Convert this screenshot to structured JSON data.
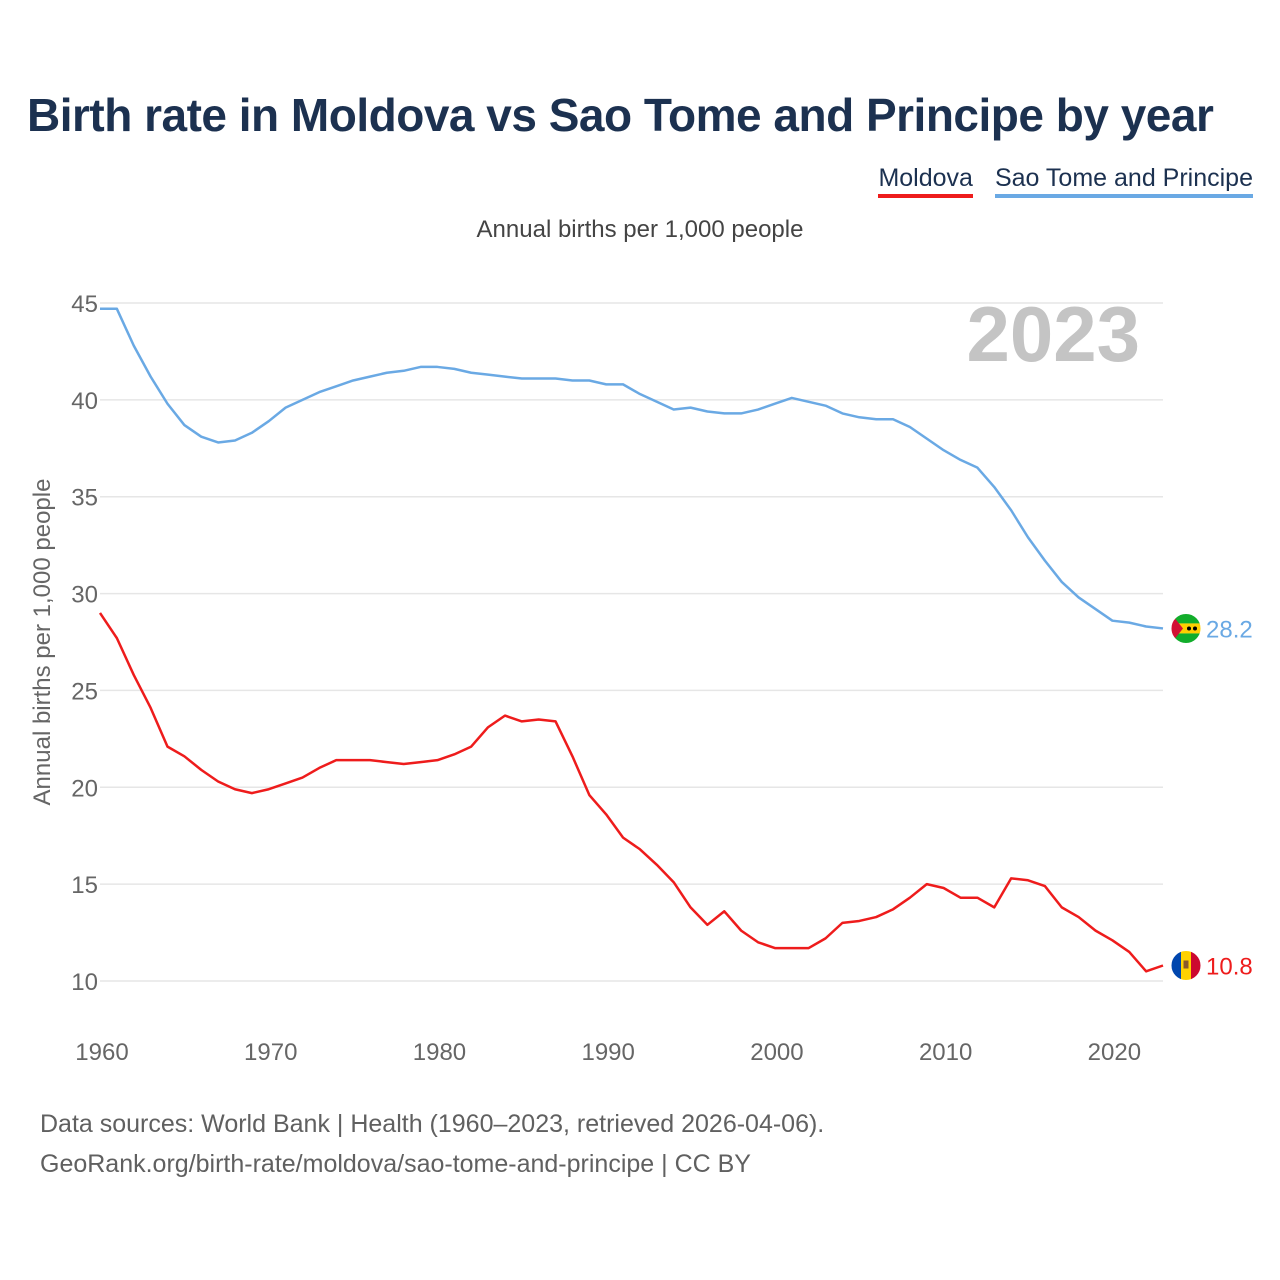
{
  "title": "Birth rate in Moldova vs Sao Tome and Principe by year",
  "subtitle": "Annual births per 1,000 people",
  "legend": {
    "moldova": "Moldova",
    "stp": "Sao Tome and Principe"
  },
  "footer": {
    "line1": "Data sources: World Bank | Health (1960–2023, retrieved 2026-04-06).",
    "line2": "GeoRank.org/birth-rate/moldova/sao-tome-and-principe | CC BY"
  },
  "chart_data": {
    "type": "line",
    "title": "Birth rate in Moldova vs Sao Tome and Principe by year",
    "ylabel": "Annual births per 1,000 people",
    "xlabel": "",
    "year_label": "2023",
    "xlim": [
      1960,
      2023
    ],
    "ylim": [
      10,
      45
    ],
    "x_ticks": [
      1960,
      1970,
      1980,
      1990,
      2000,
      2010,
      2020
    ],
    "y_ticks": [
      10,
      15,
      20,
      25,
      30,
      35,
      40,
      45
    ],
    "x": [
      1960,
      1961,
      1962,
      1963,
      1964,
      1965,
      1966,
      1967,
      1968,
      1969,
      1970,
      1971,
      1972,
      1973,
      1974,
      1975,
      1976,
      1977,
      1978,
      1979,
      1980,
      1981,
      1982,
      1983,
      1984,
      1985,
      1986,
      1987,
      1988,
      1989,
      1990,
      1991,
      1992,
      1993,
      1994,
      1995,
      1996,
      1997,
      1998,
      1999,
      2000,
      2001,
      2002,
      2003,
      2004,
      2005,
      2006,
      2007,
      2008,
      2009,
      2010,
      2011,
      2012,
      2013,
      2014,
      2015,
      2016,
      2017,
      2018,
      2019,
      2020,
      2021,
      2022,
      2023
    ],
    "series": [
      {
        "name": "Moldova",
        "color": "#ee1c1c",
        "end_label": "10.8",
        "flag": "moldova-flag-icon",
        "values": [
          29.0,
          27.7,
          25.8,
          24.1,
          22.1,
          21.6,
          20.9,
          20.3,
          19.9,
          19.7,
          19.9,
          20.2,
          20.5,
          21.0,
          21.4,
          21.4,
          21.4,
          21.3,
          21.2,
          21.3,
          21.4,
          21.7,
          22.1,
          23.1,
          23.7,
          23.4,
          23.5,
          23.4,
          21.6,
          19.6,
          18.6,
          17.4,
          16.8,
          16.0,
          15.1,
          13.8,
          12.9,
          13.6,
          12.6,
          12.0,
          11.7,
          11.7,
          11.7,
          12.2,
          13.0,
          13.1,
          13.3,
          13.7,
          14.3,
          15.0,
          14.8,
          14.3,
          14.3,
          13.8,
          15.3,
          15.2,
          14.9,
          13.8,
          13.3,
          12.6,
          12.1,
          11.5,
          10.5,
          10.8
        ]
      },
      {
        "name": "Sao Tome and Principe",
        "color": "#6aa9e4",
        "end_label": "28.2",
        "flag": "sao-tome-flag-icon",
        "values": [
          44.7,
          44.7,
          42.8,
          41.2,
          39.8,
          38.7,
          38.1,
          37.8,
          37.9,
          38.3,
          38.9,
          39.6,
          40.0,
          40.4,
          40.7,
          41.0,
          41.2,
          41.4,
          41.5,
          41.7,
          41.7,
          41.6,
          41.4,
          41.3,
          41.2,
          41.1,
          41.1,
          41.1,
          41.0,
          41.0,
          40.8,
          40.8,
          40.3,
          39.9,
          39.5,
          39.6,
          39.4,
          39.3,
          39.3,
          39.5,
          39.8,
          40.1,
          39.9,
          39.7,
          39.3,
          39.1,
          39.0,
          39.0,
          38.6,
          38.0,
          37.4,
          36.9,
          36.5,
          35.5,
          34.3,
          32.9,
          31.7,
          30.6,
          29.8,
          29.2,
          28.6,
          28.5,
          28.3,
          28.2
        ]
      }
    ]
  }
}
